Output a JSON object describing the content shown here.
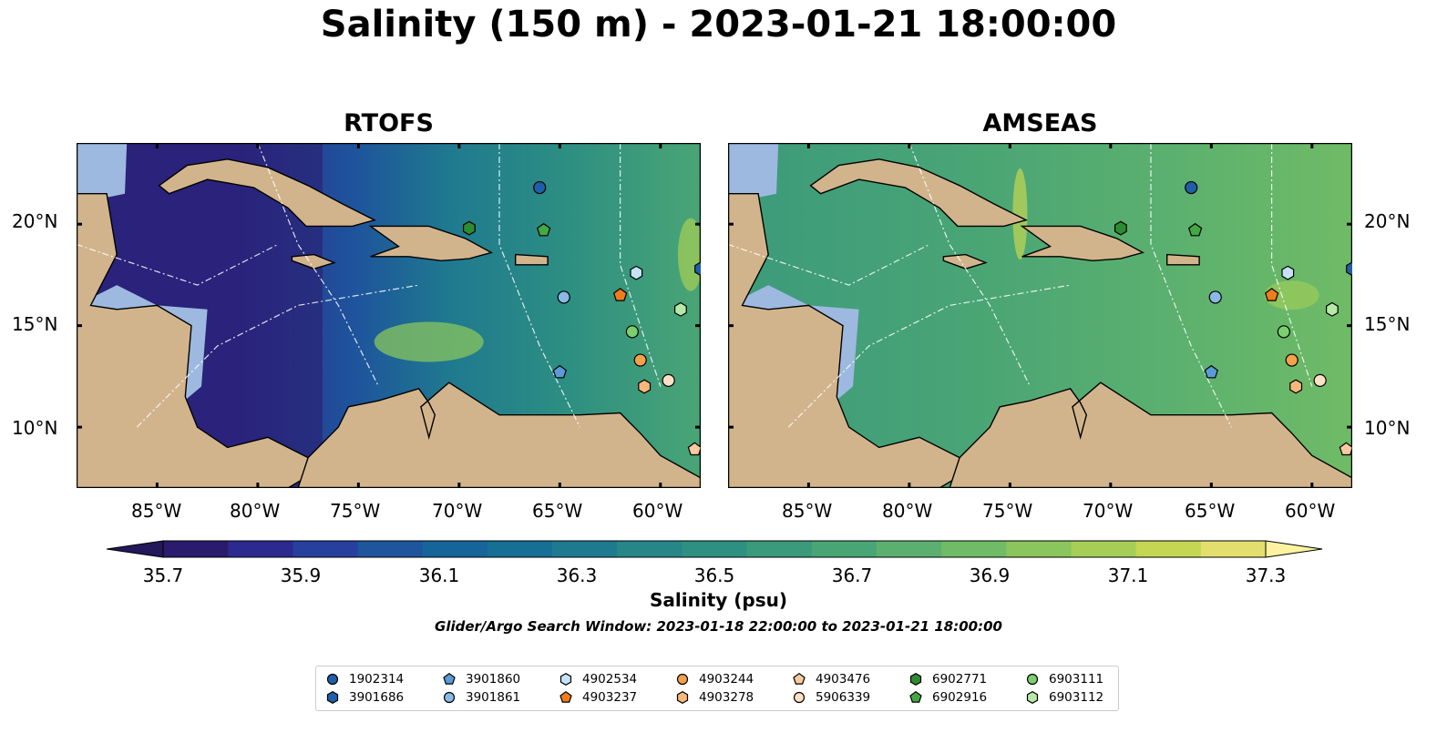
{
  "title": "Salinity (150 m) - 2023-01-21 18:00:00",
  "panels": [
    {
      "title": "RTOFS",
      "model": "rtofs"
    },
    {
      "title": "AMSEAS",
      "model": "amseas"
    }
  ],
  "axes": {
    "lon_ticks": [
      "85°W",
      "80°W",
      "75°W",
      "70°W",
      "65°W",
      "60°W"
    ],
    "lat_ticks": [
      "20°N",
      "15°N",
      "10°N"
    ],
    "lon_range": [
      -89,
      -58
    ],
    "lat_range": [
      7,
      24
    ]
  },
  "colorbar": {
    "label": "Salinity (psu)",
    "ticks": [
      "35.7",
      "35.9",
      "36.1",
      "36.3",
      "36.5",
      "36.7",
      "36.9",
      "37.1",
      "37.3"
    ],
    "vmin": 35.6,
    "vmax": 37.4,
    "colors": [
      "#2a1b6c",
      "#2c2a8f",
      "#27409e",
      "#1e559c",
      "#16659a",
      "#176f96",
      "#1f7a8f",
      "#268688",
      "#2e9081",
      "#3b9a7b",
      "#4aa575",
      "#5bb06f",
      "#6fbb66",
      "#8ac55d",
      "#a6ce56",
      "#c4d652",
      "#e2df6f"
    ],
    "extend": "both",
    "under_color": "#22185a",
    "over_color": "#fdf2a0"
  },
  "search_window": "Glider/Argo Search Window: 2023-01-18 22:00:00 to 2023-01-21 18:00:00",
  "land_color": "#d2b48c",
  "shelf_color": "#9db9e0",
  "floats": [
    {
      "id": "1902314",
      "marker": "circle",
      "color": "#1f5fa8",
      "lon": -66.0,
      "lat": 21.8
    },
    {
      "id": "3901686",
      "marker": "hexagon",
      "color": "#1f5fa8",
      "lon": -58.0,
      "lat": 17.8
    },
    {
      "id": "3901860",
      "marker": "pentagon",
      "color": "#5b9bd5",
      "lon": -65.0,
      "lat": 12.7
    },
    {
      "id": "3901861",
      "marker": "circle",
      "color": "#8ab9e6",
      "lon": -64.8,
      "lat": 16.4
    },
    {
      "id": "4902534",
      "marker": "hexagon",
      "color": "#c6e2f5",
      "lon": -61.2,
      "lat": 17.6
    },
    {
      "id": "4903237",
      "marker": "pentagon",
      "color": "#f07c1a",
      "lon": -62.0,
      "lat": 16.5
    },
    {
      "id": "4903244",
      "marker": "circle",
      "color": "#f5a04a",
      "lon": -61.0,
      "lat": 13.3
    },
    {
      "id": "4903278",
      "marker": "hexagon",
      "color": "#f9b77a",
      "lon": -60.8,
      "lat": 12.0
    },
    {
      "id": "4903476",
      "marker": "pentagon",
      "color": "#f9c9a0",
      "lon": -58.3,
      "lat": 8.9
    },
    {
      "id": "5906339",
      "marker": "circle",
      "color": "#fde0c4",
      "lon": -59.6,
      "lat": 12.3
    },
    {
      "id": "6902771",
      "marker": "hexagon",
      "color": "#2f8b30",
      "lon": -69.5,
      "lat": 19.8
    },
    {
      "id": "6902916",
      "marker": "pentagon",
      "color": "#45a845",
      "lon": -65.8,
      "lat": 19.7
    },
    {
      "id": "6903111",
      "marker": "circle",
      "color": "#7ccf6e",
      "lon": -61.4,
      "lat": 14.7
    },
    {
      "id": "6903112",
      "marker": "hexagon",
      "color": "#b8e8a8",
      "lon": -59.0,
      "lat": 15.8
    }
  ]
}
